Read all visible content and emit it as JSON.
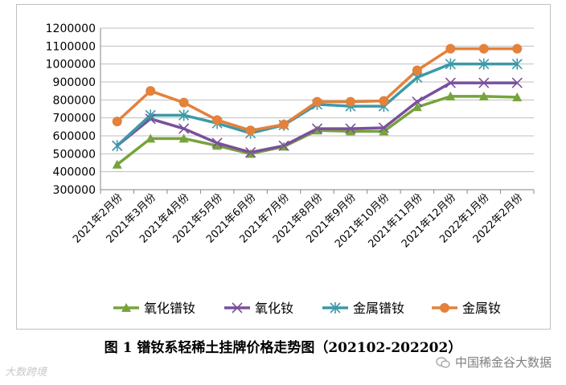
{
  "caption": "图 1  镨钕系轻稀土挂牌价格走势图（202102-202202）",
  "watermark_left": "大数跨境",
  "watermark_right": "中国稀金谷大数据",
  "chart_data": {
    "type": "line",
    "title": "",
    "xlabel": "",
    "ylabel": "",
    "ylim": [
      300000,
      1200000
    ],
    "yticks": [
      300000,
      400000,
      500000,
      600000,
      700000,
      800000,
      900000,
      1000000,
      1100000,
      1200000
    ],
    "grid": true,
    "legend": "bottom",
    "categories": [
      "2021年2月份",
      "2021年3月份",
      "2021年4月份",
      "2021年5月份",
      "2021年6月份",
      "2021年7月份",
      "2021年8月份",
      "2021年9月份",
      "2021年10月份",
      "2021年11月份",
      "2021年12月份",
      "2022年1月份",
      "2022年2月份"
    ],
    "series": [
      {
        "name": "氧化镨钕",
        "color": "#77a33c",
        "marker": "triangle",
        "values": [
          440000,
          585000,
          585000,
          545000,
          500000,
          540000,
          630000,
          625000,
          625000,
          760000,
          820000,
          820000,
          815000
        ]
      },
      {
        "name": "氧化钕",
        "color": "#7a4f9b",
        "marker": "x",
        "values": [
          545000,
          695000,
          640000,
          560000,
          508000,
          545000,
          640000,
          640000,
          645000,
          790000,
          895000,
          895000,
          895000
        ]
      },
      {
        "name": "金属镨钕",
        "color": "#3d99a8",
        "marker": "star",
        "values": [
          545000,
          715000,
          715000,
          670000,
          615000,
          660000,
          775000,
          765000,
          765000,
          925000,
          1000000,
          1000000,
          1000000
        ]
      },
      {
        "name": "金属钕",
        "color": "#e4813b",
        "marker": "circle",
        "values": [
          680000,
          850000,
          785000,
          688000,
          630000,
          663000,
          790000,
          790000,
          795000,
          965000,
          1085000,
          1085000,
          1085000
        ]
      }
    ]
  }
}
